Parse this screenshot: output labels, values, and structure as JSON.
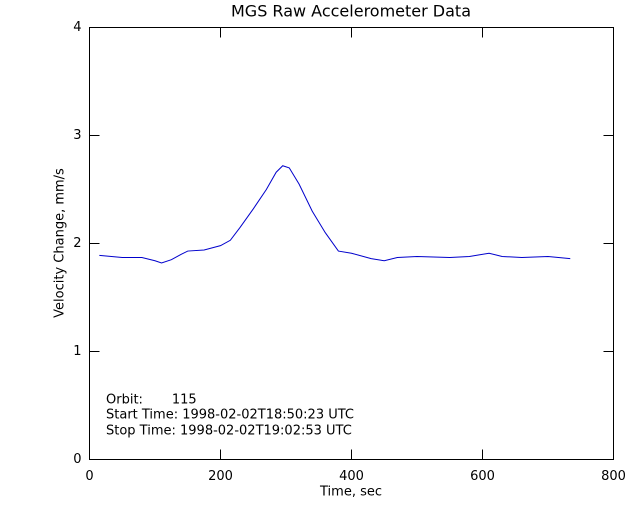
{
  "chart_data": {
    "type": "line",
    "title": "MGS Raw Accelerometer Data",
    "x_label": "Time, sec",
    "y_label": "Velocity Change, mm/s",
    "annotations": [
      "Orbit:       115",
      "Start Time: 1998-02-02T18:50:23 UTC",
      "Stop Time: 1998-02-02T19:02:53 UTC"
    ],
    "x": [
      15,
      50,
      80,
      100,
      110,
      125,
      140,
      150,
      175,
      200,
      215,
      230,
      250,
      270,
      285,
      295,
      305,
      320,
      340,
      360,
      380,
      400,
      430,
      450,
      470,
      500,
      550,
      580,
      610,
      630,
      660,
      700,
      734
    ],
    "series": [
      {
        "color": "#0000cc",
        "values": [
          1.89,
          1.87,
          1.87,
          1.84,
          1.82,
          1.85,
          1.9,
          1.93,
          1.94,
          1.98,
          2.03,
          2.15,
          2.32,
          2.5,
          2.66,
          2.72,
          2.7,
          2.55,
          2.3,
          2.1,
          1.93,
          1.91,
          1.86,
          1.84,
          1.87,
          1.88,
          1.87,
          1.88,
          1.91,
          1.88,
          1.87,
          1.88,
          1.86
        ]
      }
    ],
    "xlim": [
      0,
      800
    ],
    "xticks": [
      0,
      200,
      400,
      600,
      800
    ],
    "ylim": [
      0,
      4
    ],
    "yticks": [
      0,
      1,
      2,
      3,
      4
    ]
  }
}
